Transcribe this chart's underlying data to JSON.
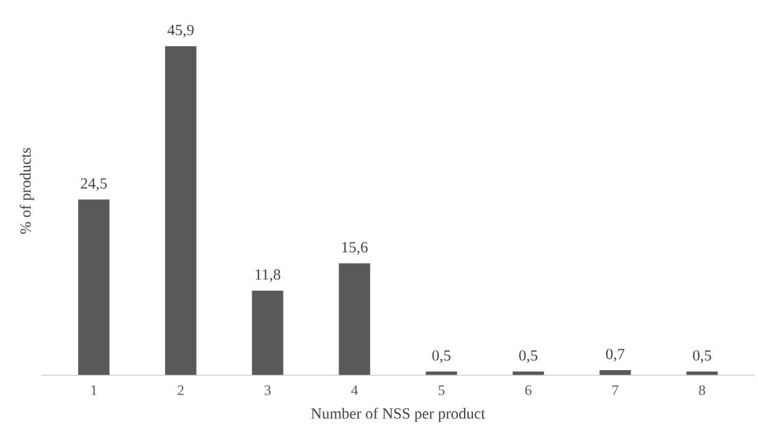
{
  "chart_data": {
    "type": "bar",
    "xlabel": "Number of NSS per product",
    "ylabel": "% of products",
    "categories": [
      "1",
      "2",
      "3",
      "4",
      "5",
      "6",
      "7",
      "8"
    ],
    "values": [
      24.5,
      45.9,
      11.8,
      15.6,
      0.5,
      0.5,
      0.7,
      0.5
    ],
    "value_labels": [
      "24,5",
      "45,9",
      "11,8",
      "15,6",
      "0,5",
      "0,5",
      "0,7",
      "0,5"
    ],
    "color": "#595959",
    "tick_labels": "x",
    "grid": false,
    "legend": false
  }
}
